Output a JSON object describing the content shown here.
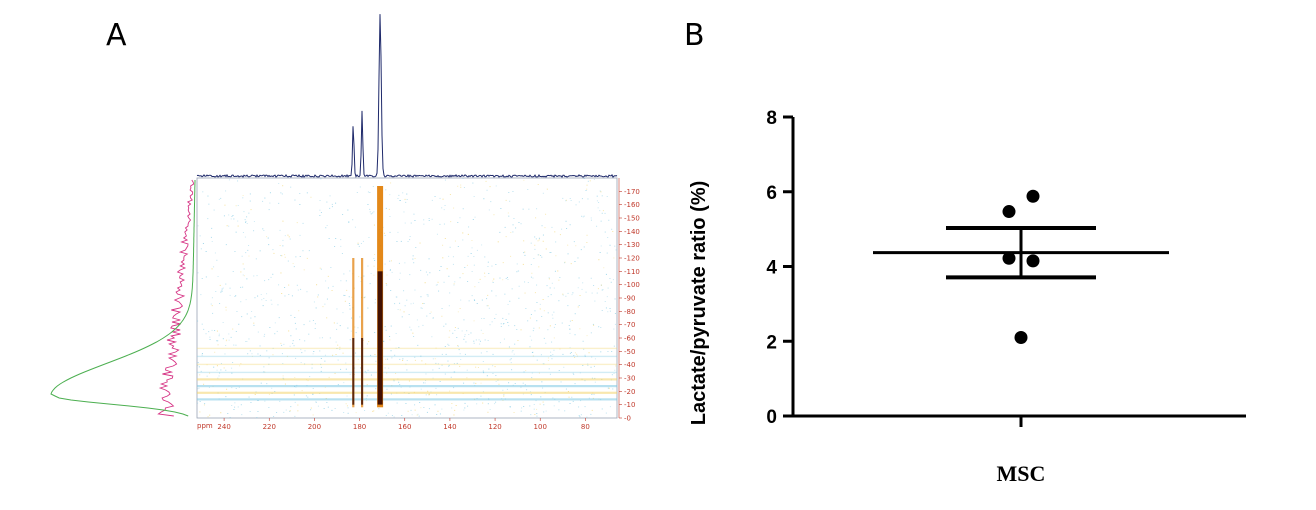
{
  "panels": {
    "a_label": "A",
    "b_label": "B"
  },
  "chart_data": [
    {
      "panel": "A",
      "type": "heatmap",
      "title": "",
      "x_axis": {
        "unit_label": "ppm",
        "ticks": [
          240,
          220,
          200,
          180,
          160,
          140,
          120,
          100,
          80
        ],
        "range": [
          252,
          66
        ],
        "reversed": true
      },
      "y_axis": {
        "ticks": [
          0,
          10,
          20,
          30,
          40,
          50,
          60,
          70,
          80,
          90,
          100,
          110,
          120,
          130,
          140,
          150,
          160,
          170
        ],
        "range": [
          0,
          180
        ],
        "position": "right"
      },
      "peaks_ppm": [
        182.8,
        178.9,
        170.9
      ],
      "peak_relative_heights": [
        0.34,
        0.42,
        1.0
      ],
      "colors": {
        "background_noise": "#7ec8e3",
        "signal": "#e07b00",
        "signal_core": "#3a0a00",
        "top_projection": "#1f2a6b",
        "left_projection_1": "#d63384",
        "left_projection_2": "#4caf50",
        "tick_labels": "#c0392b"
      }
    },
    {
      "panel": "B",
      "type": "scatter",
      "title": "",
      "xlabel": "",
      "ylabel": "Lactate/pyruvate ratio (%)",
      "categories": [
        "MSC"
      ],
      "ylim": [
        0,
        8
      ],
      "y_ticks": [
        0,
        2,
        4,
        6,
        8
      ],
      "points": [
        {
          "x": -0.12,
          "y": 5.47
        },
        {
          "x": 0.12,
          "y": 5.88
        },
        {
          "x": -0.12,
          "y": 4.22
        },
        {
          "x": 0.12,
          "y": 4.15
        },
        {
          "x": 0.0,
          "y": 2.1
        }
      ],
      "mean": 4.37,
      "sem_upper": 5.03,
      "sem_lower": 3.71
    }
  ]
}
